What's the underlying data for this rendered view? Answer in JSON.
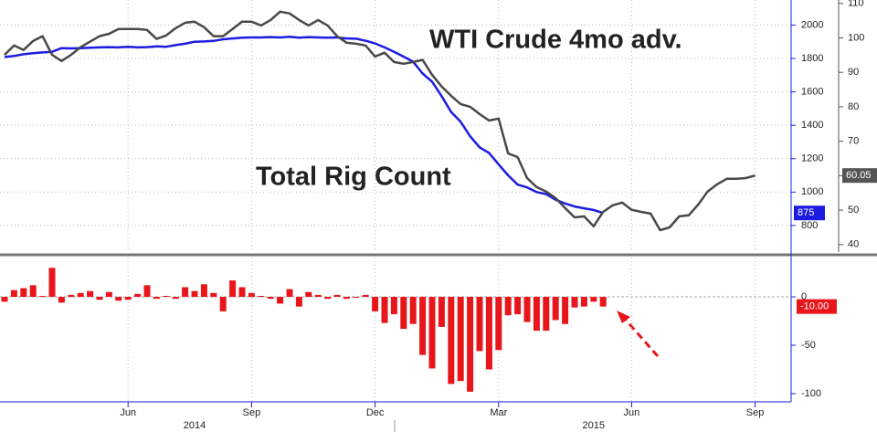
{
  "chart_data": [
    {
      "type": "line",
      "ylim": [
        630,
        2150
      ],
      "yticks": [
        800,
        1000,
        1200,
        1400,
        1600,
        1800,
        2000
      ],
      "y2lim": [
        37.3,
        111
      ],
      "y2ticks": [
        40,
        50,
        60,
        70,
        80,
        90,
        100,
        110
      ],
      "grid": true,
      "series": [
        {
          "name": "Total Rig Count",
          "color": "#1c1ce0",
          "axis": "y",
          "values": [
            1809,
            1815,
            1825,
            1832,
            1836,
            1840,
            1862,
            1860,
            1862,
            1864,
            1866,
            1868,
            1866,
            1870,
            1866,
            1868,
            1872,
            1870,
            1880,
            1888,
            1900,
            1902,
            1905,
            1915,
            1920,
            1924,
            1926,
            1926,
            1928,
            1926,
            1930,
            1924,
            1928,
            1926,
            1924,
            1926,
            1920,
            1918,
            1906,
            1890,
            1866,
            1840,
            1811,
            1781,
            1710,
            1661,
            1575,
            1480,
            1421,
            1334,
            1268,
            1234,
            1166,
            1100,
            1045,
            1028,
            1000,
            988,
            954,
            932,
            914,
            903,
            893,
            875,
            null,
            null,
            null,
            null,
            null,
            null,
            null,
            null,
            null,
            null,
            null,
            null,
            null,
            null,
            null,
            null
          ]
        },
        {
          "name": "WTI Crude 4mo adv.",
          "color": "#484848",
          "axis": "y2",
          "values": [
            95.1,
            97.8,
            96.5,
            99.1,
            100.5,
            95.1,
            93.3,
            95.1,
            97.3,
            98.9,
            100.5,
            101.2,
            102.6,
            102.6,
            102.6,
            102.3,
            99.7,
            100.7,
            102.8,
            104.4,
            104.7,
            103.1,
            100.5,
            100.5,
            102.6,
            104.7,
            104.7,
            103.6,
            105.2,
            107.6,
            107.1,
            105.2,
            103.6,
            105.2,
            103.6,
            100.5,
            98.6,
            98.3,
            97.8,
            94.6,
            95.7,
            93.0,
            92.5,
            93.0,
            93.6,
            89.3,
            85.9,
            83.2,
            80.8,
            80.0,
            77.9,
            76.0,
            76.6,
            66.5,
            65.4,
            59.3,
            56.7,
            55.4,
            53.5,
            50.6,
            47.9,
            48.2,
            45.3,
            49.5,
            51.4,
            52.2,
            50.1,
            49.5,
            49.0,
            44.2,
            45.0,
            48.2,
            48.5,
            51.6,
            55.4,
            57.5,
            59.1,
            59.1,
            59.3,
            60.05
          ]
        }
      ]
    },
    {
      "type": "bar",
      "categories": [
        null,
        null,
        null,
        null,
        null,
        null,
        null,
        null,
        null,
        null,
        null,
        null,
        null,
        "Jun",
        null,
        null,
        null,
        null,
        null,
        null,
        null,
        null,
        null,
        null,
        null,
        null,
        "Sep",
        null,
        null,
        null,
        null,
        null,
        null,
        null,
        null,
        null,
        null,
        null,
        null,
        "Dec",
        null,
        null,
        null,
        null,
        null,
        null,
        null,
        null,
        null,
        null,
        null,
        null,
        "Mar",
        null,
        null,
        null,
        null,
        null,
        null,
        null,
        null,
        null,
        null,
        null,
        null,
        null,
        "Jun",
        null,
        null,
        null,
        null,
        null,
        null,
        null,
        null,
        null,
        null,
        null,
        null,
        "Sep"
      ],
      "year_labels": [
        null,
        null,
        null,
        null,
        null,
        null,
        null,
        null,
        null,
        null,
        null,
        null,
        null,
        null,
        null,
        null,
        null,
        null,
        null,
        null,
        "2014",
        null,
        null,
        null,
        null,
        null,
        null,
        null,
        null,
        null,
        null,
        null,
        null,
        null,
        null,
        null,
        null,
        null,
        null,
        null,
        null,
        null,
        null,
        null,
        null,
        null,
        null,
        null,
        null,
        null,
        null,
        null,
        null,
        null,
        null,
        null,
        null,
        null,
        null,
        null,
        null,
        null,
        "2015",
        null,
        null,
        null,
        null,
        null,
        null,
        null,
        null,
        null,
        null,
        null,
        null,
        null,
        null,
        null,
        null,
        null
      ],
      "values": [
        -5,
        7,
        9,
        12,
        1,
        30,
        -6,
        2,
        4,
        6,
        -3,
        5,
        -4,
        -3,
        3,
        12,
        -2,
        1,
        -2,
        10,
        6,
        13,
        4,
        -15,
        17,
        10,
        4,
        1,
        -2,
        -7,
        8,
        -10,
        5,
        2,
        -2,
        2,
        -2,
        -1,
        2,
        -15,
        -27,
        -18,
        -33,
        -28,
        -60,
        -74,
        -31,
        -90,
        -87,
        -98,
        -56,
        -75,
        -55,
        -19,
        -18,
        -26,
        -35,
        -35,
        -24,
        -28,
        -11,
        -10,
        -5,
        -10,
        null,
        null,
        null,
        null,
        null,
        null,
        null,
        null,
        null,
        null,
        null,
        null,
        null,
        null,
        null,
        null
      ],
      "end_label": "-10.00",
      "color": "#e8161b",
      "ylim": [
        -108.5,
        42.5
      ],
      "yticks": [
        -100,
        -50,
        0
      ]
    }
  ]
}
